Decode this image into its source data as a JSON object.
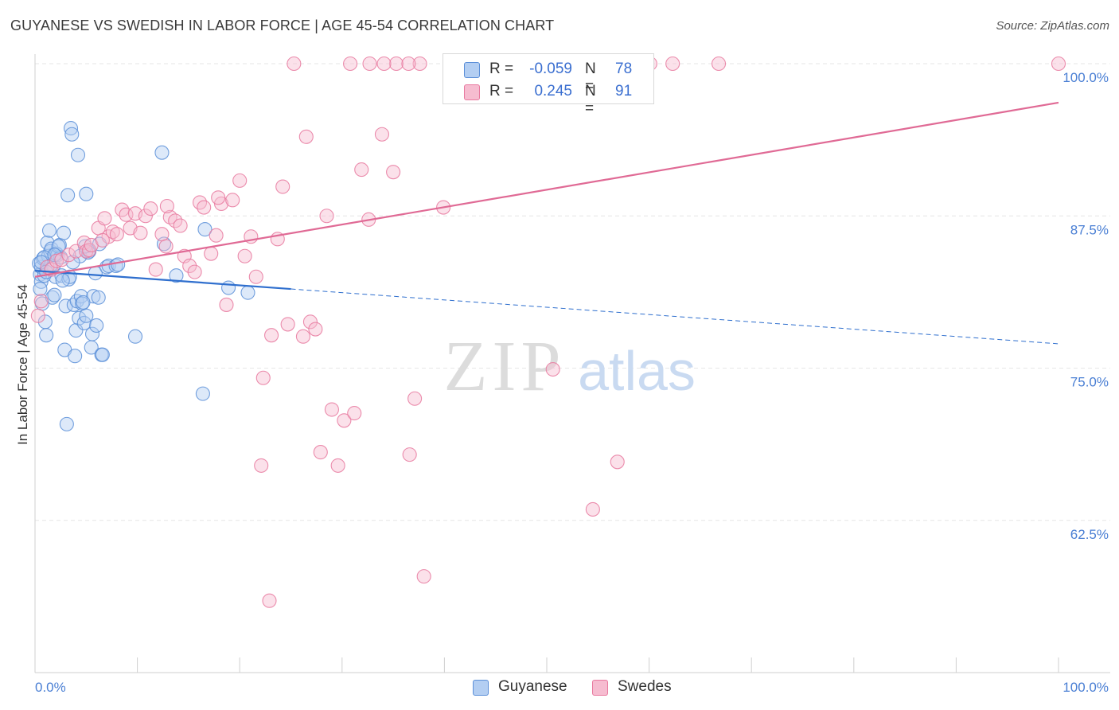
{
  "title": "GUYANESE VS SWEDISH IN LABOR FORCE | AGE 45-54 CORRELATION CHART",
  "source": "Source: ZipAtlas.com",
  "watermark": {
    "zip": "ZIP",
    "atlas": "atlas"
  },
  "colors": {
    "blue": "#5b8fd8",
    "blue_fill": "#b3cef2",
    "blue_line": "#2f6fce",
    "pink": "#e8799f",
    "pink_fill": "#f6bcd0",
    "pink_line": "#e06a95",
    "axis_text": "#4a7fd4",
    "grid": "#e6e6e6"
  },
  "legend_top": [
    {
      "key": "blue",
      "r_label": "R =",
      "r_value": "-0.059",
      "n_label": "N =",
      "n_value": "78"
    },
    {
      "key": "pink",
      "r_label": "R =",
      "r_value": "0.245",
      "n_label": "N =",
      "n_value": "91"
    }
  ],
  "legend_bottom": [
    {
      "key": "blue",
      "label": "Guyanese"
    },
    {
      "key": "pink",
      "label": "Swedes"
    }
  ],
  "chart_data": {
    "type": "scatter",
    "title": "GUYANESE VS SWEDISH IN LABOR FORCE | AGE 45-54 CORRELATION CHART",
    "xlabel": "",
    "ylabel": "In Labor Force | Age 45-54",
    "xlim": [
      0,
      100
    ],
    "ylim": [
      50,
      100
    ],
    "x_tick_labels": [
      "0.0%",
      "100.0%"
    ],
    "y_ticks": [
      {
        "value": 100,
        "label": "100.0%"
      },
      {
        "value": 87.5,
        "label": "87.5%"
      },
      {
        "value": 75,
        "label": "75.0%"
      },
      {
        "value": 62.5,
        "label": "62.5%"
      }
    ],
    "grid": true,
    "legend": "top-center",
    "series": [
      {
        "name": "Guyanese",
        "key": "blue",
        "R": -0.059,
        "N": 78,
        "trend": {
          "x0": 0,
          "y0": 83.0,
          "x1": 25,
          "y1": 81.5,
          "dashed_to_x": 100,
          "dashed_to_y": 77.0
        },
        "points": [
          [
            0.4,
            83.6
          ],
          [
            0.5,
            82.7
          ],
          [
            0.6,
            83.3
          ],
          [
            0.6,
            82.1
          ],
          [
            0.7,
            80.3
          ],
          [
            0.8,
            84.0
          ],
          [
            0.9,
            82.6
          ],
          [
            1.0,
            78.8
          ],
          [
            1.1,
            77.7
          ],
          [
            1.2,
            85.3
          ],
          [
            1.3,
            84.2
          ],
          [
            1.4,
            86.3
          ],
          [
            1.5,
            84.6
          ],
          [
            1.6,
            84.8
          ],
          [
            1.7,
            80.8
          ],
          [
            1.8,
            83.4
          ],
          [
            1.9,
            81.0
          ],
          [
            2.0,
            82.5
          ],
          [
            2.1,
            84.4
          ],
          [
            2.2,
            84.3
          ],
          [
            2.4,
            85.1
          ],
          [
            2.5,
            84.1
          ],
          [
            2.6,
            82.6
          ],
          [
            2.8,
            86.1
          ],
          [
            2.9,
            76.5
          ],
          [
            3.0,
            80.1
          ],
          [
            3.1,
            70.4
          ],
          [
            3.2,
            89.2
          ],
          [
            3.3,
            82.3
          ],
          [
            3.4,
            82.5
          ],
          [
            3.5,
            94.7
          ],
          [
            3.6,
            94.2
          ],
          [
            3.8,
            80.2
          ],
          [
            3.9,
            76.0
          ],
          [
            4.0,
            78.1
          ],
          [
            4.1,
            80.5
          ],
          [
            4.2,
            92.5
          ],
          [
            4.3,
            79.1
          ],
          [
            4.4,
            84.2
          ],
          [
            4.5,
            80.9
          ],
          [
            4.6,
            80.3
          ],
          [
            4.8,
            78.7
          ],
          [
            5.0,
            79.3
          ],
          [
            5.3,
            84.6
          ],
          [
            5.5,
            76.7
          ],
          [
            5.6,
            77.8
          ],
          [
            5.7,
            80.9
          ],
          [
            5.9,
            82.8
          ],
          [
            6.0,
            78.5
          ],
          [
            6.2,
            80.8
          ],
          [
            6.5,
            76.1
          ],
          [
            6.6,
            76.1
          ],
          [
            7.0,
            83.3
          ],
          [
            7.2,
            83.4
          ],
          [
            7.9,
            83.4
          ],
          [
            8.1,
            83.5
          ],
          [
            9.8,
            77.6
          ],
          [
            12.4,
            92.7
          ],
          [
            12.6,
            85.2
          ],
          [
            13.8,
            82.6
          ],
          [
            16.4,
            72.9
          ],
          [
            16.6,
            86.4
          ],
          [
            18.9,
            81.6
          ],
          [
            20.8,
            81.2
          ],
          [
            0.9,
            84.1
          ],
          [
            1.5,
            83.4
          ],
          [
            2.3,
            85.0
          ],
          [
            5.2,
            84.5
          ],
          [
            6.3,
            85.2
          ],
          [
            5.0,
            89.3
          ],
          [
            0.5,
            81.5
          ],
          [
            0.6,
            83.7
          ],
          [
            1.1,
            82.9
          ],
          [
            1.9,
            84.3
          ],
          [
            2.7,
            82.2
          ],
          [
            4.7,
            80.4
          ],
          [
            3.7,
            83.7
          ],
          [
            4.9,
            85.0
          ]
        ]
      },
      {
        "name": "Swedes",
        "key": "pink",
        "R": 0.245,
        "N": 91,
        "trend": {
          "x0": 0,
          "y0": 82.5,
          "x1": 100,
          "y1": 96.8
        },
        "points": [
          [
            0.3,
            79.3
          ],
          [
            0.6,
            80.5
          ],
          [
            1.2,
            83.3
          ],
          [
            1.6,
            83.1
          ],
          [
            2.1,
            83.8
          ],
          [
            2.6,
            83.9
          ],
          [
            3.3,
            84.3
          ],
          [
            4.0,
            84.6
          ],
          [
            4.8,
            85.3
          ],
          [
            5.0,
            84.6
          ],
          [
            5.3,
            84.7
          ],
          [
            5.5,
            85.1
          ],
          [
            6.2,
            86.5
          ],
          [
            6.8,
            87.3
          ],
          [
            7.2,
            85.8
          ],
          [
            7.6,
            86.2
          ],
          [
            8.0,
            86.0
          ],
          [
            8.5,
            88.0
          ],
          [
            8.9,
            87.6
          ],
          [
            9.3,
            86.5
          ],
          [
            9.8,
            87.7
          ],
          [
            10.3,
            86.1
          ],
          [
            10.8,
            87.5
          ],
          [
            11.3,
            88.1
          ],
          [
            11.8,
            83.1
          ],
          [
            12.4,
            86.0
          ],
          [
            12.8,
            85.0
          ],
          [
            13.2,
            87.4
          ],
          [
            13.7,
            87.1
          ],
          [
            14.2,
            86.7
          ],
          [
            14.6,
            84.2
          ],
          [
            15.1,
            83.4
          ],
          [
            15.6,
            82.9
          ],
          [
            16.1,
            88.6
          ],
          [
            16.5,
            88.2
          ],
          [
            17.2,
            84.4
          ],
          [
            17.7,
            85.9
          ],
          [
            18.2,
            88.5
          ],
          [
            18.7,
            80.2
          ],
          [
            19.3,
            88.8
          ],
          [
            20.0,
            90.4
          ],
          [
            20.5,
            84.2
          ],
          [
            21.1,
            85.8
          ],
          [
            21.6,
            82.5
          ],
          [
            22.3,
            74.2
          ],
          [
            23.1,
            77.7
          ],
          [
            23.7,
            85.6
          ],
          [
            24.2,
            89.9
          ],
          [
            24.7,
            78.6
          ],
          [
            25.3,
            100
          ],
          [
            26.2,
            77.6
          ],
          [
            26.5,
            94.0
          ],
          [
            26.9,
            78.8
          ],
          [
            27.4,
            78.2
          ],
          [
            27.9,
            68.1
          ],
          [
            28.5,
            87.5
          ],
          [
            29.0,
            71.6
          ],
          [
            29.6,
            67.0
          ],
          [
            30.2,
            70.7
          ],
          [
            31.2,
            71.3
          ],
          [
            30.8,
            100
          ],
          [
            31.9,
            91.3
          ],
          [
            32.6,
            87.2
          ],
          [
            32.7,
            100
          ],
          [
            33.9,
            94.2
          ],
          [
            35.0,
            91.1
          ],
          [
            35.3,
            100
          ],
          [
            36.6,
            67.9
          ],
          [
            37.1,
            72.5
          ],
          [
            37.6,
            100
          ],
          [
            38.0,
            57.9
          ],
          [
            39.9,
            88.2
          ],
          [
            40.6,
            100
          ],
          [
            42.4,
            100
          ],
          [
            46.1,
            100
          ],
          [
            50.6,
            74.9
          ],
          [
            54.5,
            63.4
          ],
          [
            56.9,
            67.3
          ],
          [
            60.1,
            100
          ],
          [
            62.3,
            100
          ],
          [
            66.8,
            100
          ],
          [
            100,
            100
          ],
          [
            22.1,
            67.0
          ],
          [
            22.9,
            55.9
          ],
          [
            17.9,
            89.0
          ],
          [
            12.9,
            88.3
          ],
          [
            34.1,
            100
          ],
          [
            36.5,
            100
          ],
          [
            42.6,
            100
          ],
          [
            59.3,
            100
          ],
          [
            6.6,
            85.5
          ]
        ]
      }
    ]
  }
}
